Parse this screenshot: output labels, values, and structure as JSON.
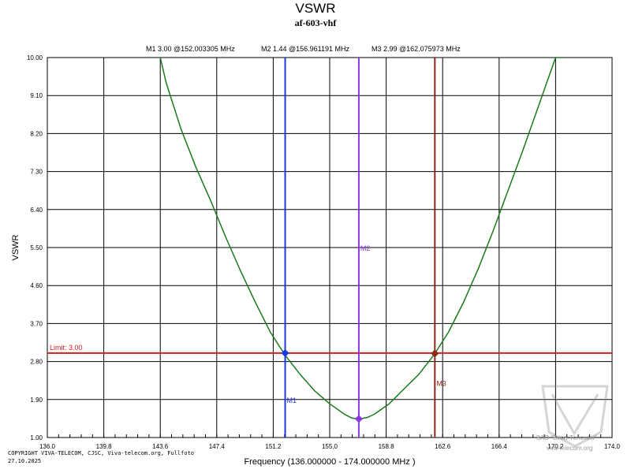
{
  "chart_data": {
    "type": "line",
    "title": "VSWR",
    "subtitle": "af-603-vhf",
    "xlabel": "Frequency (136.000000 - 174.000000 MHz )",
    "ylabel": "VSWR",
    "xlim": [
      136.0,
      174.0
    ],
    "ylim": [
      1.0,
      10.0
    ],
    "x_ticks": [
      "136.0",
      "139.8",
      "143.6",
      "147.4",
      "151.2",
      "155.0",
      "158.8",
      "162.6",
      "166.4",
      "170.2",
      "174.0"
    ],
    "y_ticks": [
      "1.00",
      "1.90",
      "2.80",
      "3.70",
      "4.60",
      "5.50",
      "6.40",
      "7.30",
      "8.20",
      "9.10",
      "10.00"
    ],
    "grid": true,
    "series": [
      {
        "name": "VSWR",
        "color": "#1a7a1a",
        "x": [
          143.6,
          144.0,
          145.0,
          146.0,
          147.0,
          148.0,
          149.0,
          150.0,
          151.0,
          152.0,
          153.0,
          154.0,
          155.0,
          156.0,
          156.5,
          157.0,
          157.5,
          158.0,
          159.0,
          160.0,
          161.0,
          162.0,
          163.0,
          164.0,
          165.0,
          166.0,
          167.0,
          168.0,
          169.0,
          169.6,
          170.2,
          170.6
        ],
        "y": [
          10.0,
          9.4,
          8.3,
          7.4,
          6.6,
          5.75,
          4.95,
          4.2,
          3.5,
          2.95,
          2.5,
          2.1,
          1.8,
          1.55,
          1.46,
          1.44,
          1.47,
          1.55,
          1.8,
          2.15,
          2.5,
          2.95,
          3.5,
          4.2,
          5.0,
          5.9,
          6.85,
          7.8,
          8.8,
          9.4,
          10.0,
          10.0
        ]
      }
    ],
    "limit": {
      "label": "Limit: 3.00",
      "value": 3.0,
      "color": "#cc2222"
    },
    "markers": [
      {
        "name": "M1",
        "x": 152.003305,
        "y": 3.0,
        "readout": "M1  3.00 @152.003305 MHz",
        "color": "#1a3adf",
        "label_y": 1.9
      },
      {
        "name": "M2",
        "x": 156.961191,
        "y": 1.44,
        "readout": "M2  1.44 @156.961191 MHz",
        "color": "#8a3adf",
        "label_y": 5.5
      },
      {
        "name": "M3",
        "x": 162.075973,
        "y": 2.99,
        "readout": "M3  2.99 @162.075973 MHz",
        "color": "#8b2a1a",
        "label_y": 2.3
      }
    ],
    "marker_readouts": [
      {
        "text": "M1  3.00 @152.003305 MHz",
        "color": "#1a3adf"
      },
      {
        "text": "M2  1.44 @156.961191 MHz",
        "color": "#8a3adf"
      },
      {
        "text": "M3  2.99 @162.075973 MHz",
        "color": "#8b2a1a"
      }
    ],
    "footer": {
      "copyright": "COPYRIGHT VIVA-TELECOM, CJSC, Viva-telecom.org, Fullfoto",
      "date": "27.10.2025",
      "watermark_company": "ЗАО \"Вива-Телеком\"",
      "watermark_url": "viva-telecom.org"
    }
  }
}
